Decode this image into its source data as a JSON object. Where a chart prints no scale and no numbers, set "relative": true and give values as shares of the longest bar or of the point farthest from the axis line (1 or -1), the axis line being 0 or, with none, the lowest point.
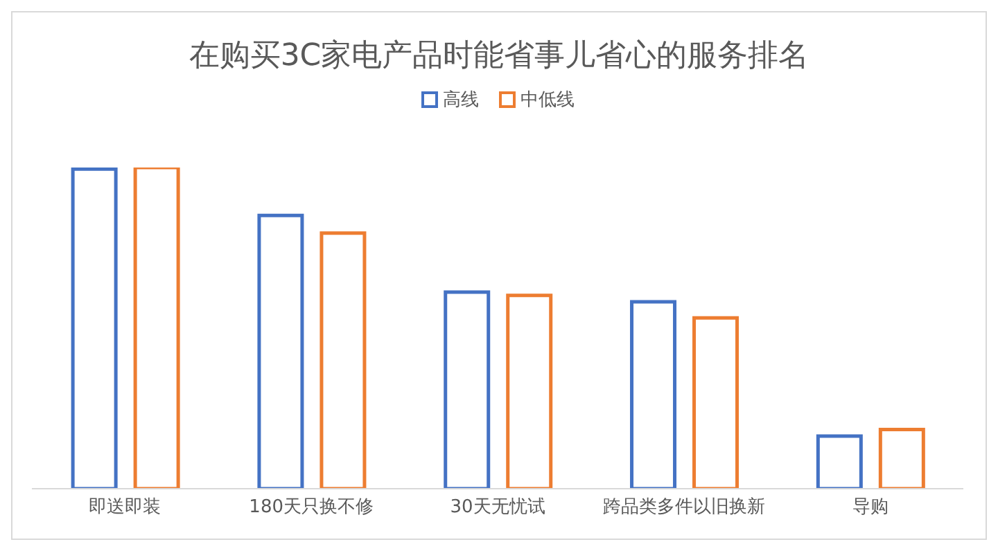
{
  "chart_data": {
    "type": "bar",
    "title": "在购买3C家电产品时能省事儿省心的服务排名",
    "relative": true,
    "legend": "top",
    "categories": [
      "即送即装",
      "180天只换不修",
      "30天无忧试",
      "跨品类多件以旧换新",
      "导购"
    ],
    "series": [
      {
        "name": "高线",
        "color": "#4472c4",
        "values": [
          0.995,
          0.851,
          0.612,
          0.582,
          0.164
        ]
      },
      {
        "name": "中低线",
        "color": "#ed7d31",
        "values": [
          1,
          0.796,
          0.602,
          0.532,
          0.184
        ]
      }
    ]
  }
}
